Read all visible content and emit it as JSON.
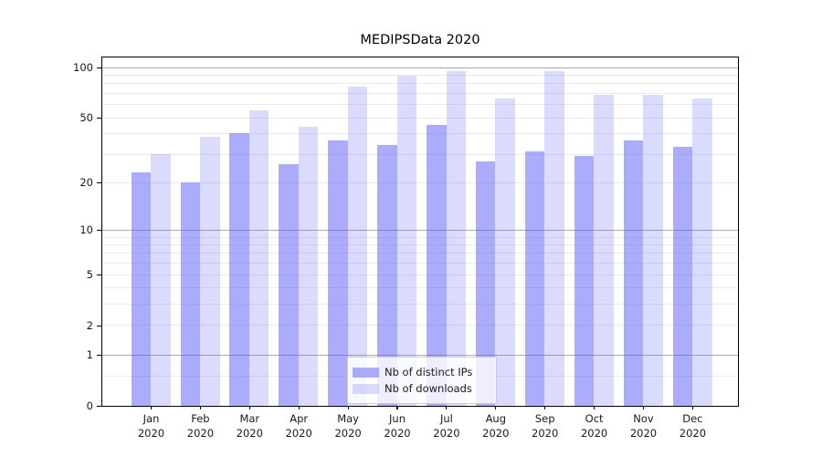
{
  "chart_data": {
    "type": "bar",
    "title": "MEDIPSData 2020",
    "categories": [
      "Jan",
      "Feb",
      "Mar",
      "Apr",
      "May",
      "Jun",
      "Jul",
      "Aug",
      "Sep",
      "Oct",
      "Nov",
      "Dec"
    ],
    "year_label": "2020",
    "series": [
      {
        "name": "Nb of distinct IPs",
        "color_hex": "#5a5afc",
        "opacity": 0.5,
        "values": [
          23,
          20,
          40,
          26,
          36,
          34,
          45,
          27,
          31,
          29,
          36,
          33
        ]
      },
      {
        "name": "Nb of downloads",
        "color_hex": "#5a5afc",
        "opacity": 0.22,
        "values": [
          30,
          38,
          55,
          44,
          76,
          89,
          95,
          65,
          95,
          68,
          68,
          65
        ]
      }
    ],
    "yscale": "log1p",
    "ylim": [
      0,
      115
    ],
    "yticks": [
      0,
      1,
      2,
      5,
      10,
      20,
      50,
      100
    ],
    "major_gridlines": [
      1,
      10,
      100
    ],
    "minor_gridlines": [
      0.5,
      2,
      3,
      4,
      5,
      6,
      7,
      8,
      9,
      20,
      30,
      40,
      50,
      60,
      70,
      80,
      90
    ],
    "grid": "on",
    "legend_position": "bottom-center",
    "spine_color": "#000000",
    "major_grid_color": "#ababab",
    "minor_grid_color": "#eaeaea"
  }
}
